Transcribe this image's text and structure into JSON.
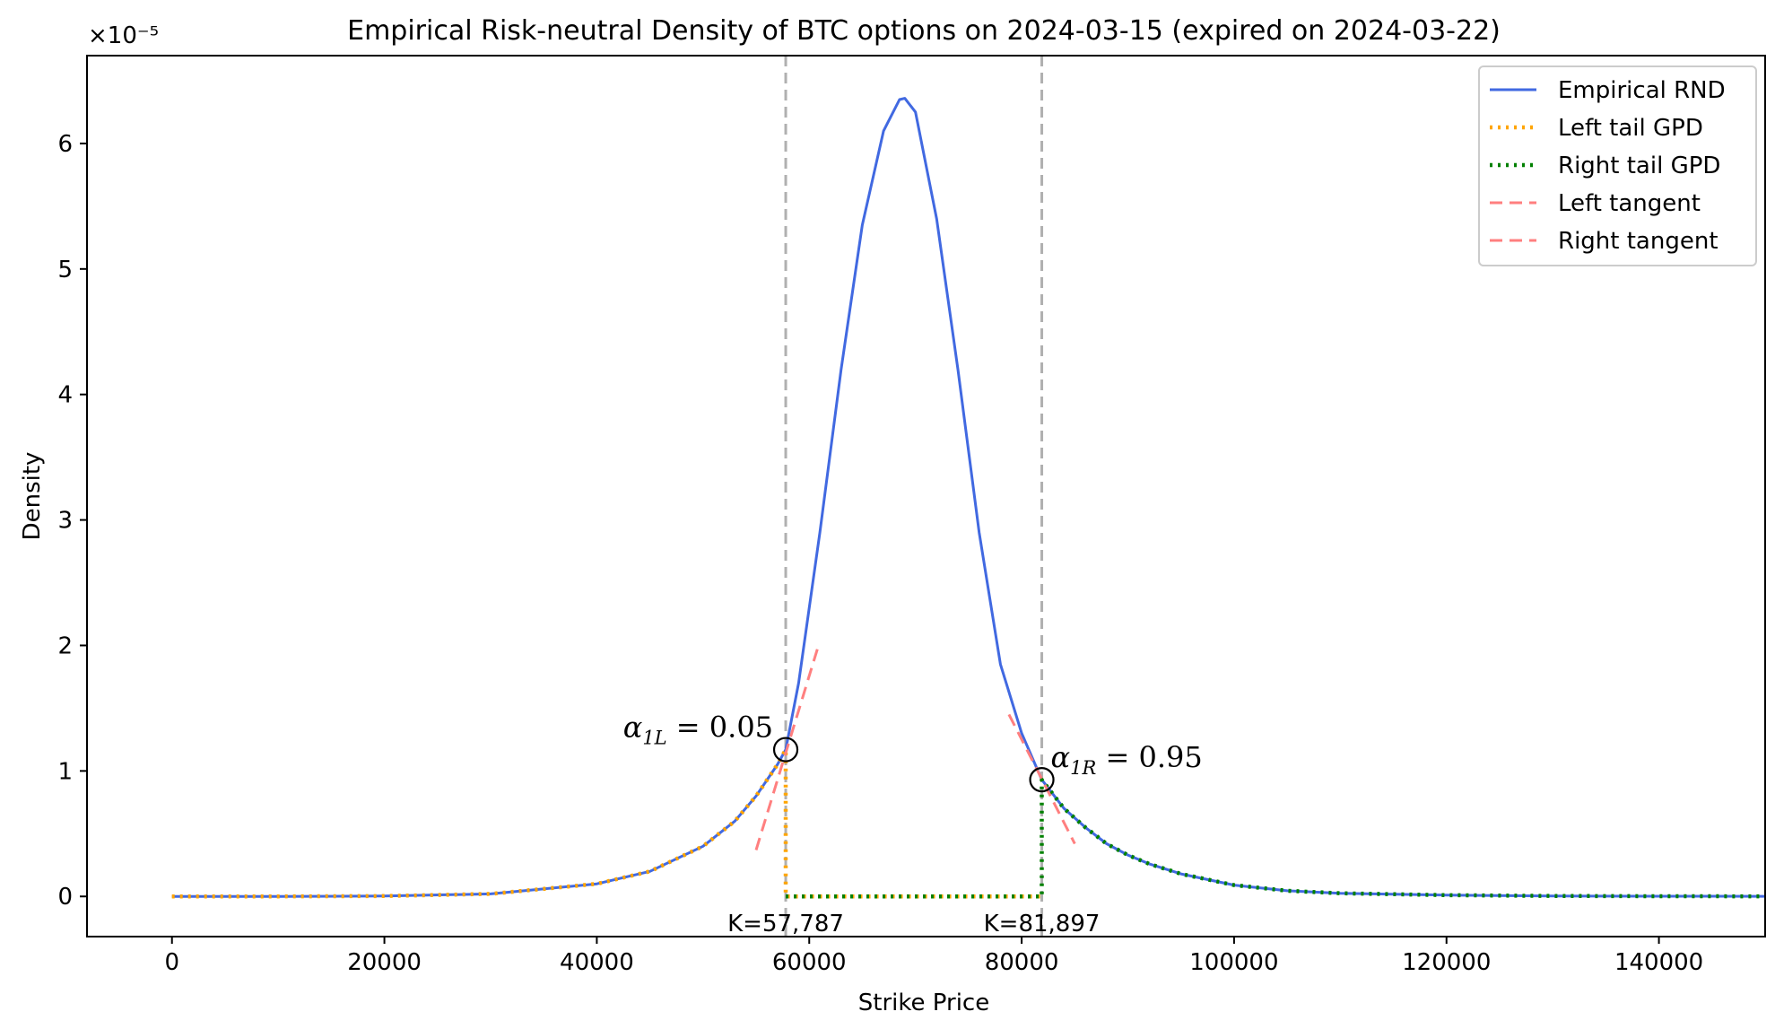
{
  "chart_data": {
    "type": "line",
    "title": "Empirical Risk-neutral Density of BTC options on 2024-03-15 (expired on 2024-03-22)",
    "xlabel": "Strike Price",
    "ylabel": "Density",
    "y_offset_label": "×10⁻⁵",
    "xlim": [
      -8000,
      150000
    ],
    "ylim": [
      -0.32,
      6.7
    ],
    "xticks": [
      0,
      20000,
      40000,
      60000,
      80000,
      100000,
      120000,
      140000
    ],
    "xtick_labels": [
      "0",
      "20000",
      "40000",
      "60000",
      "80000",
      "100000",
      "120000",
      "140000"
    ],
    "yticks": [
      0,
      1,
      2,
      3,
      4,
      5,
      6
    ],
    "ytick_labels": [
      "0",
      "1",
      "2",
      "3",
      "4",
      "5",
      "6"
    ],
    "y_unit": "1e-5",
    "grid": false,
    "legend_position": "top-right",
    "series": [
      {
        "name": "Empirical RND",
        "style": "solid",
        "color": "#4169e1",
        "x": [
          0,
          10000,
          20000,
          30000,
          40000,
          45000,
          50000,
          53000,
          55000,
          57000,
          57787,
          59000,
          61000,
          63000,
          65000,
          67000,
          68500,
          69000,
          70000,
          72000,
          74000,
          76000,
          78000,
          80000,
          81897,
          84000,
          86000,
          88000,
          90000,
          92000,
          95000,
          100000,
          105000,
          110000,
          120000,
          130000,
          140000,
          150000
        ],
        "y": [
          0,
          0.0003,
          0.003,
          0.02,
          0.1,
          0.2,
          0.4,
          0.6,
          0.8,
          1.05,
          1.17,
          1.7,
          2.9,
          4.2,
          5.35,
          6.1,
          6.35,
          6.36,
          6.25,
          5.4,
          4.2,
          2.9,
          1.85,
          1.3,
          0.93,
          0.7,
          0.55,
          0.42,
          0.33,
          0.26,
          0.18,
          0.09,
          0.045,
          0.025,
          0.01,
          0.004,
          0.002,
          0.001
        ]
      },
      {
        "name": "Left tail GPD",
        "style": "dotted",
        "color": "#ffa500",
        "x": [
          0,
          10000,
          20000,
          30000,
          40000,
          45000,
          50000,
          53000,
          55000,
          57000,
          57787,
          57787,
          81897
        ],
        "y": [
          0,
          0.0003,
          0.003,
          0.02,
          0.1,
          0.2,
          0.4,
          0.6,
          0.8,
          1.05,
          1.17,
          0,
          0
        ]
      },
      {
        "name": "Right tail GPD",
        "style": "dotted",
        "color": "#008000",
        "x": [
          57787,
          81897,
          81897,
          84000,
          86000,
          88000,
          90000,
          92000,
          95000,
          100000,
          105000,
          110000,
          120000,
          130000,
          140000,
          150000
        ],
        "y": [
          0,
          0,
          0.93,
          0.7,
          0.55,
          0.42,
          0.33,
          0.26,
          0.18,
          0.09,
          0.045,
          0.025,
          0.01,
          0.004,
          0.002,
          0.001
        ]
      },
      {
        "name": "Left tangent",
        "style": "dashed",
        "color": "#ff7f7f",
        "x": [
          55000,
          60800
        ],
        "y": [
          0.37,
          1.98
        ]
      },
      {
        "name": "Right tangent",
        "style": "dashed",
        "color": "#ff7f7f",
        "x": [
          78800,
          85000
        ],
        "y": [
          1.45,
          0.42
        ]
      }
    ],
    "vertical_lines": [
      {
        "x": 57787,
        "label": "K=57,787",
        "color": "#b0b0b0"
      },
      {
        "x": 81897,
        "label": "K=81,897",
        "color": "#b0b0b0"
      }
    ],
    "annotations": [
      {
        "x": 57787,
        "y": 1.17,
        "symbol": "α",
        "subscript": "1L",
        "text": " = 0.05",
        "side": "left"
      },
      {
        "x": 81897,
        "y": 0.93,
        "symbol": "α",
        "subscript": "1R",
        "text": " = 0.95",
        "side": "right"
      }
    ]
  }
}
